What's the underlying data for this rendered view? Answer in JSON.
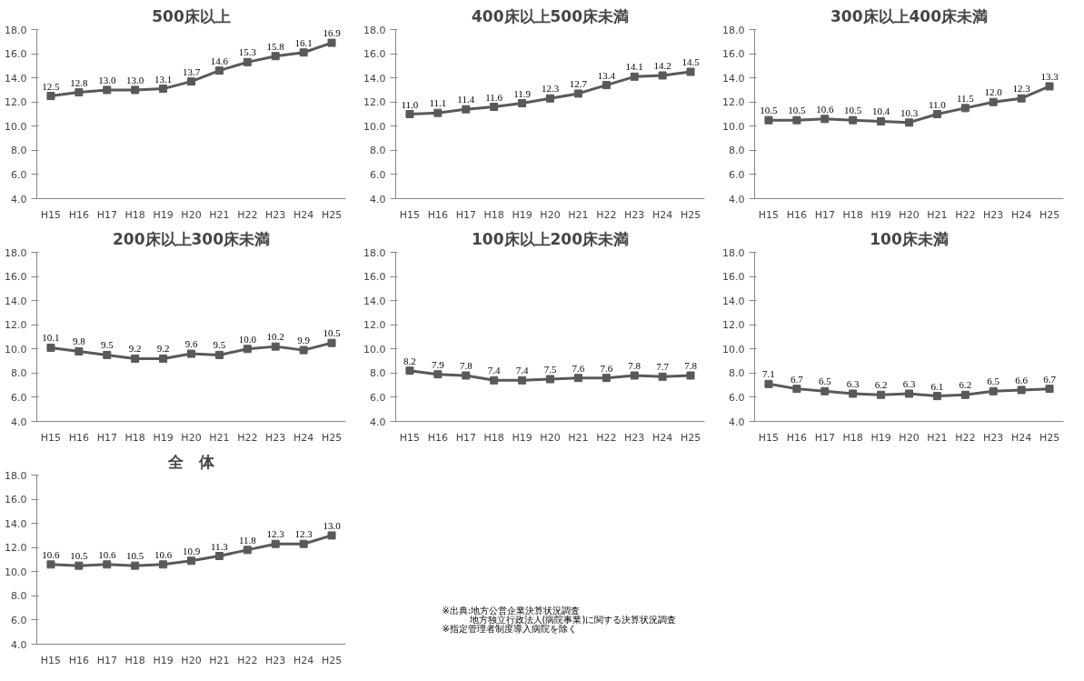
{
  "chart_data": [
    {
      "type": "line",
      "title": "500床以上",
      "categories": [
        "H15",
        "H16",
        "H17",
        "H18",
        "H19",
        "H20",
        "H21",
        "H22",
        "H23",
        "H24",
        "H25"
      ],
      "values": [
        12.5,
        12.8,
        13.0,
        13.0,
        13.1,
        13.7,
        14.6,
        15.3,
        15.8,
        16.1,
        16.9
      ],
      "value_labels": [
        "12.5",
        "12.8",
        "13.0",
        "13.0",
        "13.1",
        "13.7",
        "14.6",
        "15.3",
        "15.8",
        "16.1",
        "16.9"
      ],
      "color": "#595959",
      "marker": "square",
      "line_style": "solid",
      "ylim": [
        4,
        18
      ],
      "yticks": [
        {
          "value": 4,
          "label": "4.0"
        },
        {
          "value": 6,
          "label": "6.0"
        },
        {
          "value": 8,
          "label": "8.0"
        },
        {
          "value": 10,
          "label": "10.0"
        },
        {
          "value": 12,
          "label": "12.0"
        },
        {
          "value": 14,
          "label": "14.0"
        },
        {
          "value": 16,
          "label": "16.0"
        },
        {
          "value": 18,
          "label": "18.0"
        }
      ]
    },
    {
      "type": "line",
      "title": "400床以上500床未満",
      "categories": [
        "H15",
        "H16",
        "H17",
        "H18",
        "H19",
        "H20",
        "H21",
        "H22",
        "H23",
        "H24",
        "H25"
      ],
      "values": [
        11.0,
        11.1,
        11.4,
        11.6,
        11.9,
        12.3,
        12.7,
        13.4,
        14.1,
        14.2,
        14.5
      ],
      "value_labels": [
        "11.0",
        "11.1",
        "11.4",
        "11.6",
        "11.9",
        "12.3",
        "12.7",
        "13.4",
        "14.1",
        "14.2",
        "14.5"
      ],
      "color": "#595959",
      "marker": "square",
      "line_style": "solid",
      "ylim": [
        4,
        18
      ],
      "yticks": [
        {
          "value": 4,
          "label": "4.0"
        },
        {
          "value": 6,
          "label": "6.0"
        },
        {
          "value": 8,
          "label": "8.0"
        },
        {
          "value": 10,
          "label": "10.0"
        },
        {
          "value": 12,
          "label": "12.0"
        },
        {
          "value": 14,
          "label": "14.0"
        },
        {
          "value": 16,
          "label": "16.0"
        },
        {
          "value": 18,
          "label": "18.0"
        }
      ]
    },
    {
      "type": "line",
      "title": "300床以上400床未満",
      "categories": [
        "H15",
        "H16",
        "H17",
        "H18",
        "H19",
        "H20",
        "H21",
        "H22",
        "H23",
        "H24",
        "H25"
      ],
      "values": [
        10.5,
        10.5,
        10.6,
        10.5,
        10.4,
        10.3,
        11.0,
        11.5,
        12.0,
        12.3,
        13.3
      ],
      "value_labels": [
        "10.5",
        "10.5",
        "10.6",
        "10.5",
        "10.4",
        "10.3",
        "11.0",
        "11.5",
        "12.0",
        "12.3",
        "13.3"
      ],
      "color": "#595959",
      "marker": "square",
      "line_style": "solid",
      "ylim": [
        4,
        18
      ],
      "yticks": [
        {
          "value": 4,
          "label": "4.0"
        },
        {
          "value": 6,
          "label": "6.0"
        },
        {
          "value": 8,
          "label": "8.0"
        },
        {
          "value": 10,
          "label": "10.0"
        },
        {
          "value": 12,
          "label": "12.0"
        },
        {
          "value": 14,
          "label": "14.0"
        },
        {
          "value": 16,
          "label": "16.0"
        },
        {
          "value": 18,
          "label": "18.0"
        }
      ]
    },
    {
      "type": "line",
      "title": "200床以上300床未満",
      "categories": [
        "H15",
        "H16",
        "H17",
        "H18",
        "H19",
        "H20",
        "H21",
        "H22",
        "H23",
        "H24",
        "H25"
      ],
      "values": [
        10.1,
        9.8,
        9.5,
        9.2,
        9.2,
        9.6,
        9.5,
        10.0,
        10.2,
        9.9,
        10.5
      ],
      "value_labels": [
        "10.1",
        "9.8",
        "9.5",
        "9.2",
        "9.2",
        "9.6",
        "9.5",
        "10.0",
        "10.2",
        "9.9",
        "10.5"
      ],
      "color": "#595959",
      "marker": "square",
      "line_style": "solid",
      "ylim": [
        4,
        18
      ],
      "yticks": [
        {
          "value": 4,
          "label": "4.0"
        },
        {
          "value": 6,
          "label": "6.0"
        },
        {
          "value": 8,
          "label": "8.0"
        },
        {
          "value": 10,
          "label": "10.0"
        },
        {
          "value": 12,
          "label": "12.0"
        },
        {
          "value": 14,
          "label": "14.0"
        },
        {
          "value": 16,
          "label": "16.0"
        },
        {
          "value": 18,
          "label": "18.0"
        }
      ]
    },
    {
      "type": "line",
      "title": "100床以上200床未満",
      "categories": [
        "H15",
        "H16",
        "H17",
        "H18",
        "H19",
        "H20",
        "H21",
        "H22",
        "H23",
        "H24",
        "H25"
      ],
      "values": [
        8.2,
        7.9,
        7.8,
        7.4,
        7.4,
        7.5,
        7.6,
        7.6,
        7.8,
        7.7,
        7.8
      ],
      "value_labels": [
        "8.2",
        "7.9",
        "7.8",
        "7.4",
        "7.4",
        "7.5",
        "7.6",
        "7.6",
        "7.8",
        "7.7",
        "7.8"
      ],
      "color": "#595959",
      "marker": "square",
      "line_style": "solid",
      "ylim": [
        4,
        18
      ],
      "yticks": [
        {
          "value": 4,
          "label": "4.0"
        },
        {
          "value": 6,
          "label": "6.0"
        },
        {
          "value": 8,
          "label": "8.0"
        },
        {
          "value": 10,
          "label": "10.0"
        },
        {
          "value": 12,
          "label": "12.0"
        },
        {
          "value": 14,
          "label": "14.0"
        },
        {
          "value": 16,
          "label": "16.0"
        },
        {
          "value": 18,
          "label": "18.0"
        }
      ]
    },
    {
      "type": "line",
      "title": "100床未満",
      "categories": [
        "H15",
        "H16",
        "H17",
        "H18",
        "H19",
        "H20",
        "H21",
        "H22",
        "H23",
        "H24",
        "H25"
      ],
      "values": [
        7.1,
        6.7,
        6.5,
        6.3,
        6.2,
        6.3,
        6.1,
        6.2,
        6.5,
        6.6,
        6.7
      ],
      "value_labels": [
        "7.1",
        "6.7",
        "6.5",
        "6.3",
        "6.2",
        "6.3",
        "6.1",
        "6.2",
        "6.5",
        "6.6",
        "6.7"
      ],
      "color": "#595959",
      "marker": "square",
      "line_style": "solid",
      "ylim": [
        4,
        18
      ],
      "yticks": [
        {
          "value": 4,
          "label": "4.0"
        },
        {
          "value": 6,
          "label": "6.0"
        },
        {
          "value": 8,
          "label": "8.0"
        },
        {
          "value": 10,
          "label": "10.0"
        },
        {
          "value": 12,
          "label": "12.0"
        },
        {
          "value": 14,
          "label": "14.0"
        },
        {
          "value": 16,
          "label": "16.0"
        },
        {
          "value": 18,
          "label": "18.0"
        }
      ]
    },
    {
      "type": "line",
      "title": "全　体",
      "categories": [
        "H15",
        "H16",
        "H17",
        "H18",
        "H19",
        "H20",
        "H21",
        "H22",
        "H23",
        "H24",
        "H25"
      ],
      "values": [
        10.6,
        10.5,
        10.6,
        10.5,
        10.6,
        10.9,
        11.3,
        11.8,
        12.3,
        12.3,
        13.0
      ],
      "value_labels": [
        "10.6",
        "10.5",
        "10.6",
        "10.5",
        "10.6",
        "10.9",
        "11.3",
        "11.8",
        "12.3",
        "12.3",
        "13.0"
      ],
      "color": "#595959",
      "marker": "square",
      "line_style": "solid",
      "ylim": [
        4,
        18
      ],
      "yticks": [
        {
          "value": 4,
          "label": "4.0"
        },
        {
          "value": 6,
          "label": "6.0"
        },
        {
          "value": 8,
          "label": "8.0"
        },
        {
          "value": 10,
          "label": "10.0"
        },
        {
          "value": 12,
          "label": "12.0"
        },
        {
          "value": 14,
          "label": "14.0"
        },
        {
          "value": 16,
          "label": "16.0"
        },
        {
          "value": 18,
          "label": "18.0"
        }
      ]
    },
    {
      "type": "other",
      "annotations": [
        "※出典:地方公営企業決算状況調査",
        "　　　地方独立行政法人(病院事業)に関する決算状況調査",
        "※指定管理者制度導入病院を除く"
      ]
    }
  ]
}
